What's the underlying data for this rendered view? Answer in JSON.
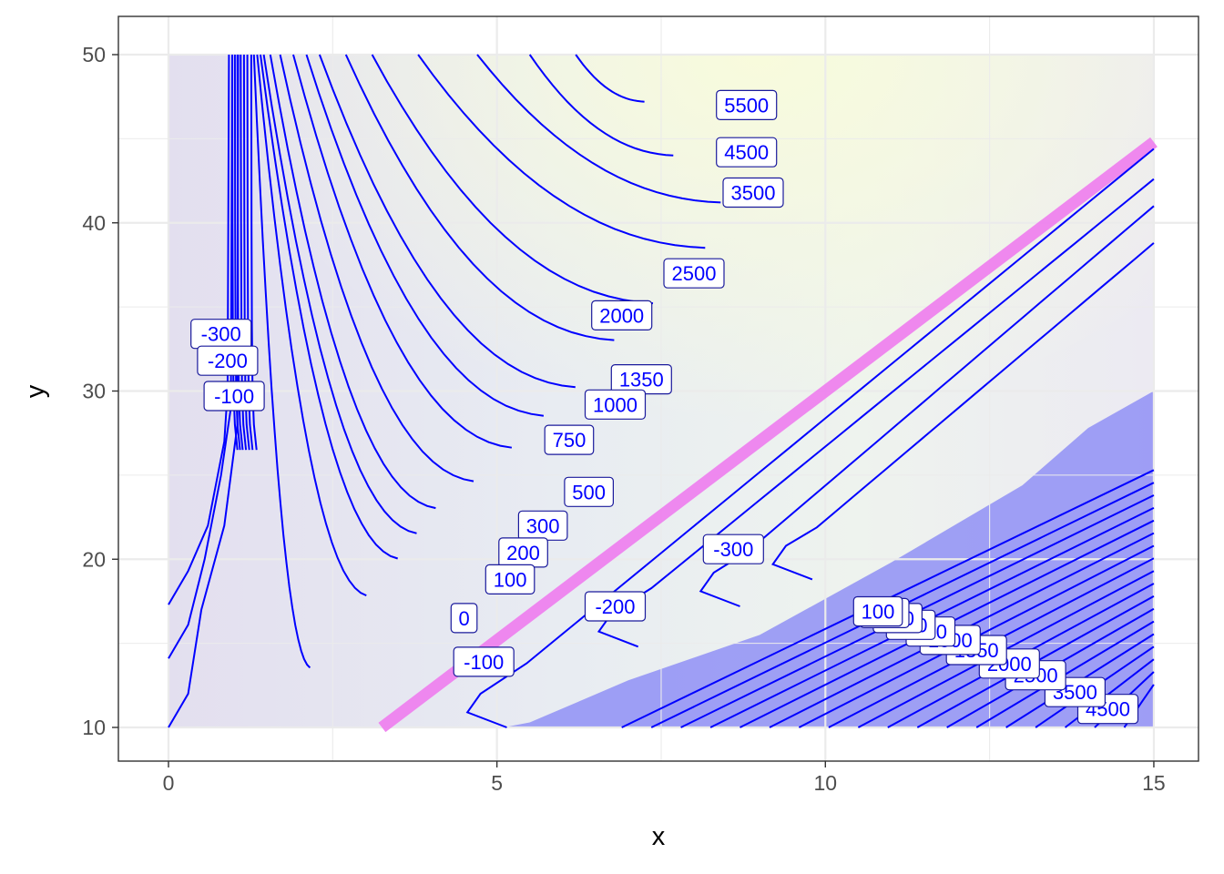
{
  "chart_data": {
    "type": "contour",
    "xlabel": "x",
    "ylabel": "y",
    "xlim": [
      0,
      15
    ],
    "ylim": [
      10,
      50
    ],
    "x_ticks": [
      "0",
      "5",
      "10",
      "15"
    ],
    "y_ticks": [
      "10",
      "20",
      "30",
      "40",
      "50"
    ],
    "grid": true,
    "legend": "none",
    "colors": {
      "contour_line": "#0000ff",
      "label_text": "#0000ff",
      "ridge": "#ee82ee",
      "region": "#8c8cf5",
      "fill_low": "#e2dff0",
      "fill_high": "#f6fbe0"
    },
    "contour_levels": [
      -300,
      -200,
      -100,
      0,
      100,
      200,
      300,
      500,
      750,
      1000,
      1350,
      2000,
      2500,
      3500,
      4500,
      5500
    ],
    "contour_labels": [
      {
        "text": "5500",
        "x": 8.8,
        "y": 47.0
      },
      {
        "text": "4500",
        "x": 8.8,
        "y": 44.2
      },
      {
        "text": "3500",
        "x": 8.9,
        "y": 41.8
      },
      {
        "text": "2500",
        "x": 8.0,
        "y": 37.0
      },
      {
        "text": "2000",
        "x": 6.9,
        "y": 34.5
      },
      {
        "text": "1350",
        "x": 7.2,
        "y": 30.7
      },
      {
        "text": "1000",
        "x": 6.8,
        "y": 29.2
      },
      {
        "text": "750",
        "x": 6.1,
        "y": 27.1
      },
      {
        "text": "500",
        "x": 6.4,
        "y": 24.0
      },
      {
        "text": "300",
        "x": 5.7,
        "y": 22.0
      },
      {
        "text": "200",
        "x": 5.4,
        "y": 20.4
      },
      {
        "text": "100",
        "x": 5.2,
        "y": 18.8
      },
      {
        "text": "0",
        "x": 4.5,
        "y": 16.5
      },
      {
        "text": "-100",
        "x": 4.8,
        "y": 13.9
      },
      {
        "text": "-200",
        "x": 6.8,
        "y": 17.2
      },
      {
        "text": "-300",
        "x": 8.6,
        "y": 20.6
      },
      {
        "text": "-300",
        "x": 0.8,
        "y": 33.4
      },
      {
        "text": "-200",
        "x": 0.9,
        "y": 31.8
      },
      {
        "text": "-100",
        "x": 1.0,
        "y": 29.7
      },
      {
        "text": "4500",
        "x": 14.3,
        "y": 11.1
      },
      {
        "text": "3500",
        "x": 13.8,
        "y": 12.1
      },
      {
        "text": "2500",
        "x": 13.2,
        "y": 13.1
      },
      {
        "text": "2000",
        "x": 12.8,
        "y": 13.8
      },
      {
        "text": "1350",
        "x": 12.3,
        "y": 14.6
      },
      {
        "text": "1000",
        "x": 11.9,
        "y": 15.2
      },
      {
        "text": "750",
        "x": 11.6,
        "y": 15.7
      },
      {
        "text": "500",
        "x": 11.3,
        "y": 16.1
      },
      {
        "text": "300",
        "x": 11.1,
        "y": 16.5
      },
      {
        "text": "200",
        "x": 10.9,
        "y": 16.8
      },
      {
        "text": "100",
        "x": 10.8,
        "y": 16.9
      }
    ]
  }
}
